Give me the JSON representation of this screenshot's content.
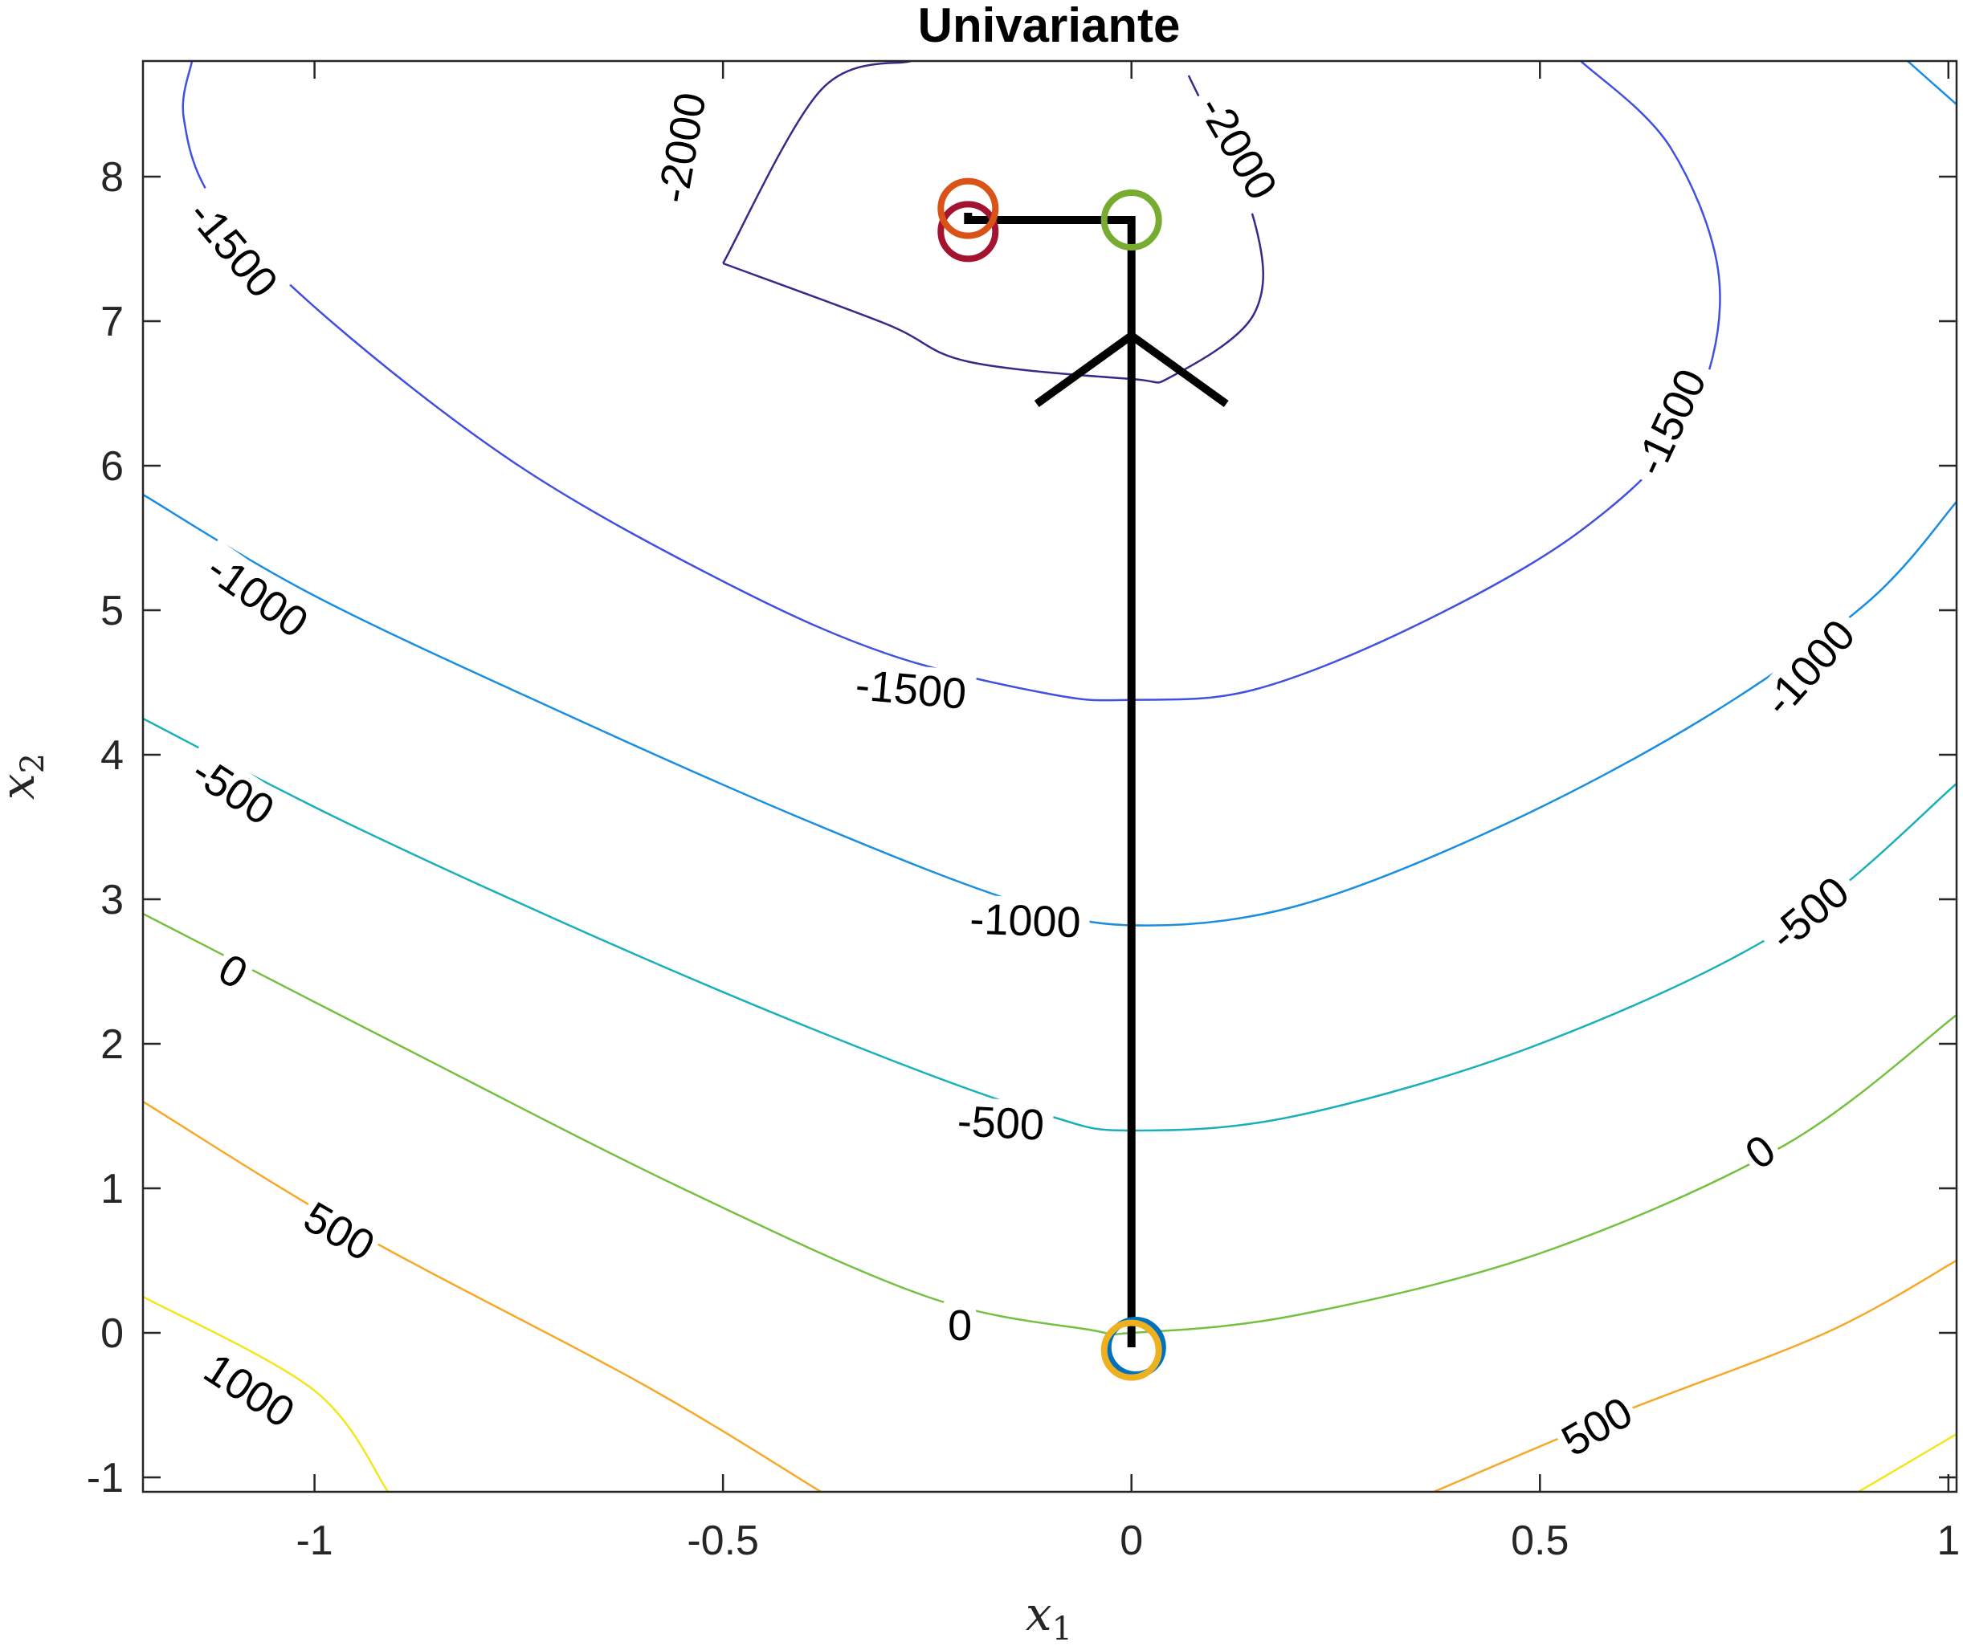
{
  "chart_data": {
    "type": "contour",
    "title": "Univariante",
    "xlabel": "x",
    "xlabel_sub": "1",
    "ylabel": "x",
    "ylabel_sub": "2",
    "xlim": [
      -1.21,
      1.01
    ],
    "ylim": [
      -1.1,
      8.8
    ],
    "xticks": [
      -1,
      -0.5,
      0,
      0.5,
      1
    ],
    "xtick_labels": [
      "-1",
      "-0.5",
      "0",
      "0.5",
      "1"
    ],
    "yticks": [
      -1,
      0,
      1,
      2,
      3,
      4,
      5,
      6,
      7,
      8
    ],
    "ytick_labels": [
      "-1",
      "0",
      "1",
      "2",
      "3",
      "4",
      "5",
      "6",
      "7",
      "8"
    ],
    "grid": false,
    "contour_levels": [
      {
        "level": -2000,
        "color": "#352a87",
        "points": [
          [
            -0.5,
            7.4
          ],
          [
            -0.3,
            6.98
          ],
          [
            -0.2,
            6.72
          ],
          [
            0.0,
            6.6
          ],
          [
            0.05,
            6.62
          ],
          [
            0.15,
            7.05
          ],
          [
            0.15,
            7.7
          ],
          [
            0.07,
            8.7
          ]
        ]
      },
      {
        "level": -2000,
        "color": "#352a87",
        "points": [
          [
            -0.27,
            8.8
          ],
          [
            -0.38,
            8.6
          ],
          [
            -0.5,
            7.4
          ]
        ]
      },
      {
        "level": -1500,
        "color": "#4050e0",
        "points": [
          [
            -1.15,
            8.8
          ],
          [
            -1.16,
            8.4
          ],
          [
            -1.12,
            7.8
          ],
          [
            -0.98,
            7.0
          ],
          [
            -0.75,
            6.0
          ],
          [
            -0.5,
            5.2
          ],
          [
            -0.3,
            4.7
          ],
          [
            -0.1,
            4.42
          ],
          [
            0.0,
            4.38
          ],
          [
            0.15,
            4.45
          ],
          [
            0.35,
            4.9
          ],
          [
            0.55,
            5.55
          ],
          [
            0.68,
            6.3
          ],
          [
            0.72,
            7.25
          ],
          [
            0.66,
            8.2
          ],
          [
            0.55,
            8.8
          ]
        ]
      },
      {
        "level": -1000,
        "color": "#1a8ee0",
        "points": [
          [
            -1.21,
            5.8
          ],
          [
            -1.0,
            5.1
          ],
          [
            -0.7,
            4.3
          ],
          [
            -0.4,
            3.55
          ],
          [
            -0.15,
            3.0
          ],
          [
            0.0,
            2.82
          ],
          [
            0.2,
            2.95
          ],
          [
            0.45,
            3.5
          ],
          [
            0.7,
            4.25
          ],
          [
            0.9,
            5.05
          ],
          [
            1.01,
            5.75
          ]
        ]
      },
      {
        "level": -1000,
        "color": "#1a8ee0",
        "points": [
          [
            0.95,
            8.8
          ],
          [
            1.01,
            8.5
          ]
        ]
      },
      {
        "level": -500,
        "color": "#19b0b8",
        "points": [
          [
            -1.21,
            4.25
          ],
          [
            -0.95,
            3.5
          ],
          [
            -0.6,
            2.6
          ],
          [
            -0.3,
            1.9
          ],
          [
            -0.1,
            1.5
          ],
          [
            0.0,
            1.4
          ],
          [
            0.2,
            1.5
          ],
          [
            0.5,
            2.0
          ],
          [
            0.8,
            2.8
          ],
          [
            1.01,
            3.8
          ]
        ]
      },
      {
        "level": 0,
        "color": "#75c040",
        "points": [
          [
            -1.21,
            2.9
          ],
          [
            -0.9,
            2.0
          ],
          [
            -0.55,
            1.0
          ],
          [
            -0.25,
            0.25
          ],
          [
            -0.05,
            0.02
          ],
          [
            0.0,
            0.0
          ],
          [
            0.2,
            0.12
          ],
          [
            0.5,
            0.55
          ],
          [
            0.8,
            1.3
          ],
          [
            1.01,
            2.2
          ]
        ]
      },
      {
        "level": 500,
        "color": "#f7a828",
        "points": [
          [
            -1.21,
            1.6
          ],
          [
            -0.95,
            0.7
          ],
          [
            -0.6,
            -0.35
          ],
          [
            -0.38,
            -1.1
          ]
        ]
      },
      {
        "level": 500,
        "color": "#f7a828",
        "points": [
          [
            0.37,
            -1.1
          ],
          [
            0.6,
            -0.55
          ],
          [
            0.85,
            0.0
          ],
          [
            1.01,
            0.5
          ]
        ]
      },
      {
        "level": 1000,
        "color": "#f3e61c",
        "points": [
          [
            -1.21,
            0.25
          ],
          [
            -1.0,
            -0.4
          ],
          [
            -0.91,
            -1.1
          ]
        ]
      },
      {
        "level": 1000,
        "color": "#f3e61c",
        "points": [
          [
            0.89,
            -1.1
          ],
          [
            1.01,
            -0.7
          ]
        ]
      }
    ],
    "contour_labels": [
      {
        "text": "-2000",
        "x": -0.55,
        "y": 8.2,
        "angle": -80
      },
      {
        "text": "-2000",
        "x": 0.13,
        "y": 8.2,
        "angle": 60
      },
      {
        "text": "-1500",
        "x": -1.1,
        "y": 7.5,
        "angle": 50
      },
      {
        "text": "-1500",
        "x": 0.66,
        "y": 6.3,
        "angle": -65
      },
      {
        "text": "-1500",
        "x": -0.27,
        "y": 4.45,
        "angle": 5
      },
      {
        "text": "-1000",
        "x": -1.07,
        "y": 5.1,
        "angle": 35
      },
      {
        "text": "-1000",
        "x": 0.83,
        "y": 4.6,
        "angle": -48
      },
      {
        "text": "-1000",
        "x": -0.13,
        "y": 2.85,
        "angle": 2
      },
      {
        "text": "-500",
        "x": -1.1,
        "y": 3.75,
        "angle": 33
      },
      {
        "text": "-500",
        "x": 0.83,
        "y": 2.9,
        "angle": -40
      },
      {
        "text": "-500",
        "x": -0.16,
        "y": 1.45,
        "angle": 3
      },
      {
        "text": "0",
        "x": -1.1,
        "y": 2.5,
        "angle": 30
      },
      {
        "text": "0",
        "x": 0.77,
        "y": 1.25,
        "angle": -35
      },
      {
        "text": "0",
        "x": -0.21,
        "y": 0.05,
        "angle": 0
      },
      {
        "text": "500",
        "x": -0.97,
        "y": 0.7,
        "angle": 30
      },
      {
        "text": "500",
        "x": 0.57,
        "y": -0.65,
        "angle": -30
      },
      {
        "text": "1000",
        "x": -1.08,
        "y": -0.4,
        "angle": 33
      }
    ],
    "path": {
      "color": "#000000",
      "points": [
        [
          0.0,
          -0.1
        ],
        [
          0.0,
          6.9
        ],
        [
          0.0,
          7.7
        ],
        [
          -0.2,
          7.7
        ],
        [
          -0.2,
          7.75
        ]
      ]
    },
    "arrow_head": {
      "x": 0.0,
      "y": 6.9
    },
    "markers": [
      {
        "x": 0.005,
        "y": -0.1,
        "color": "#0072bd"
      },
      {
        "x": 0.0,
        "y": -0.12,
        "color": "#edb120"
      },
      {
        "x": 0.0,
        "y": 7.7,
        "color": "#77ac30"
      },
      {
        "x": -0.2,
        "y": 7.62,
        "color": "#a2142f"
      },
      {
        "x": -0.2,
        "y": 7.78,
        "color": "#d95319"
      }
    ]
  }
}
